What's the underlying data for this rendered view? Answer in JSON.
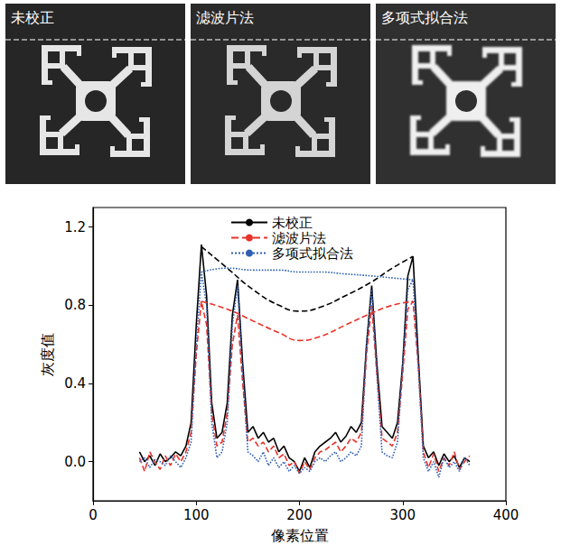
{
  "image_panels": [
    {
      "label": "未校正"
    },
    {
      "label": "滤波片法"
    },
    {
      "label": "多项式拟合法"
    }
  ],
  "chart_data": {
    "type": "line",
    "x_label": "像素位置",
    "y_label": "灰度值",
    "xlim": [
      0,
      400
    ],
    "xticks": [
      0,
      100,
      200,
      300,
      400
    ],
    "ylim": [
      -0.2,
      1.3
    ],
    "yticks": [
      {
        "value": 0,
        "label": "0.0"
      },
      0.4,
      0.8,
      1.2
    ],
    "legend": "top",
    "grid": false,
    "x": [
      45,
      50,
      55,
      60,
      65,
      70,
      75,
      80,
      85,
      90,
      95,
      100,
      105,
      110,
      115,
      120,
      125,
      130,
      135,
      140,
      145,
      150,
      155,
      160,
      165,
      170,
      175,
      180,
      185,
      190,
      195,
      200,
      205,
      210,
      215,
      220,
      225,
      230,
      235,
      240,
      245,
      250,
      255,
      260,
      265,
      270,
      275,
      280,
      285,
      290,
      295,
      300,
      305,
      310,
      315,
      320,
      325,
      330,
      335,
      340,
      345,
      350,
      355,
      360,
      365
    ],
    "trend_x": [
      105,
      130,
      155,
      180,
      200,
      220,
      245,
      270,
      290,
      310
    ],
    "series": [
      {
        "name": "未校正",
        "color": "#000000",
        "line_style": "solid",
        "values": [
          0.05,
          0.0,
          0.03,
          -0.02,
          0.04,
          0.0,
          0.02,
          0.05,
          0.03,
          0.08,
          0.2,
          0.7,
          1.11,
          0.85,
          0.3,
          0.12,
          0.15,
          0.3,
          0.75,
          0.93,
          0.5,
          0.15,
          0.18,
          0.12,
          0.15,
          0.1,
          0.12,
          0.05,
          0.08,
          0.02,
          0.0,
          -0.05,
          0.02,
          -0.03,
          0.05,
          0.08,
          0.1,
          0.12,
          0.15,
          0.1,
          0.13,
          0.18,
          0.15,
          0.2,
          0.6,
          0.9,
          0.5,
          0.18,
          0.15,
          0.12,
          0.2,
          0.5,
          0.95,
          1.05,
          0.55,
          0.08,
          0.02,
          0.05,
          -0.02,
          0.04,
          0.0,
          0.03,
          -0.03,
          0.02,
          0.0
        ],
        "trend_values": [
          1.1,
          0.99,
          0.88,
          0.8,
          0.77,
          0.79,
          0.85,
          0.92,
          0.99,
          1.05
        ]
      },
      {
        "name": "滤波片法",
        "color": "#e8332a",
        "line_style": "dashed",
        "values": [
          0.02,
          -0.05,
          0.05,
          0.0,
          -0.04,
          0.03,
          -0.02,
          0.04,
          0.0,
          0.05,
          0.15,
          0.55,
          0.82,
          0.7,
          0.25,
          0.08,
          0.1,
          0.25,
          0.6,
          0.75,
          0.4,
          0.1,
          0.12,
          0.08,
          0.1,
          0.05,
          0.08,
          0.02,
          0.04,
          -0.02,
          0.0,
          -0.06,
          0.0,
          -0.04,
          0.02,
          0.05,
          0.06,
          0.08,
          0.1,
          0.05,
          0.08,
          0.12,
          0.1,
          0.15,
          0.55,
          0.8,
          0.45,
          0.12,
          0.1,
          0.08,
          0.15,
          0.45,
          0.78,
          0.82,
          0.5,
          0.05,
          -0.03,
          0.04,
          -0.05,
          0.02,
          -0.02,
          0.05,
          -0.04,
          0.0,
          0.03
        ],
        "trend_values": [
          0.82,
          0.78,
          0.72,
          0.66,
          0.62,
          0.64,
          0.7,
          0.76,
          0.8,
          0.82
        ]
      },
      {
        "name": "多项式拟合法",
        "color": "#2f5fb3",
        "line_style": "dotted",
        "values": [
          0.0,
          0.02,
          -0.03,
          0.01,
          0.0,
          -0.02,
          0.03,
          0.0,
          -0.03,
          0.02,
          0.1,
          0.6,
          0.97,
          0.8,
          0.2,
          0.02,
          0.05,
          0.2,
          0.7,
          0.9,
          0.45,
          0.05,
          0.03,
          0.0,
          0.05,
          -0.02,
          0.02,
          -0.03,
          0.0,
          -0.05,
          -0.02,
          -0.06,
          -0.03,
          -0.05,
          0.0,
          0.02,
          0.0,
          0.03,
          0.05,
          0.0,
          0.02,
          0.05,
          0.03,
          0.08,
          0.6,
          0.88,
          0.45,
          0.05,
          0.03,
          0.02,
          0.1,
          0.5,
          0.88,
          0.93,
          0.5,
          0.02,
          -0.05,
          0.0,
          -0.08,
          0.02,
          -0.03,
          0.0,
          -0.05,
          0.02,
          -0.02
        ],
        "trend_values": [
          0.97,
          0.99,
          0.98,
          0.98,
          0.97,
          0.97,
          0.96,
          0.95,
          0.94,
          0.93
        ]
      }
    ]
  }
}
